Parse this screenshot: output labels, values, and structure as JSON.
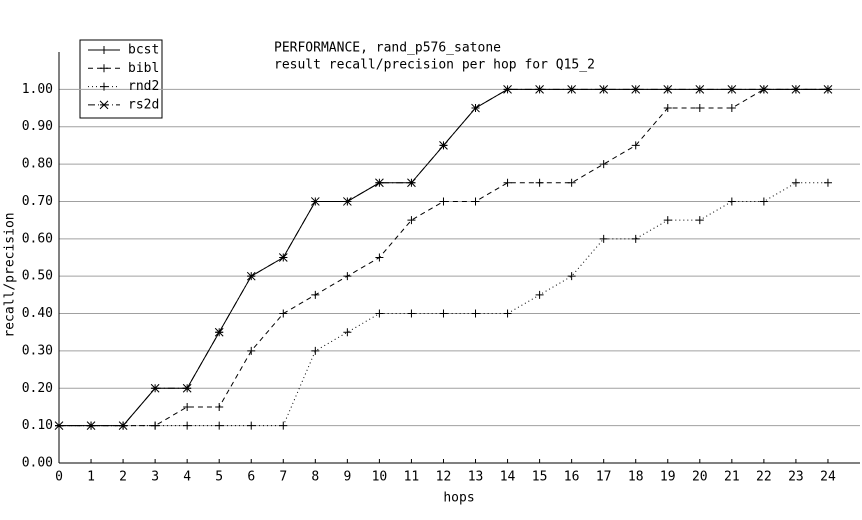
{
  "chart_data": {
    "type": "line",
    "title": "PERFORMANCE, rand_p576_satone",
    "subtitle": "result recall/precision per hop for Q15_2",
    "x_label": "hops",
    "y_label": "recall/precision",
    "x": [
      0,
      1,
      2,
      3,
      4,
      5,
      6,
      7,
      8,
      9,
      10,
      11,
      12,
      13,
      14,
      15,
      16,
      17,
      18,
      19,
      20,
      21,
      22,
      23,
      24
    ],
    "xlim": [
      0,
      25
    ],
    "xticks": [
      0,
      1,
      2,
      3,
      4,
      5,
      6,
      7,
      8,
      9,
      10,
      11,
      12,
      13,
      14,
      15,
      16,
      17,
      18,
      19,
      20,
      21,
      22,
      23,
      24
    ],
    "ylim": [
      0,
      1.1
    ],
    "yticks": [
      {
        "value": 0,
        "label": "0.00"
      },
      {
        "value": 0.1,
        "label": "0.10"
      },
      {
        "value": 0.2,
        "label": "0.20"
      },
      {
        "value": 0.3,
        "label": "0.30"
      },
      {
        "value": 0.4,
        "label": "0.40"
      },
      {
        "value": 0.5,
        "label": "0.50"
      },
      {
        "value": 0.6,
        "label": "0.60"
      },
      {
        "value": 0.7,
        "label": "0.70"
      },
      {
        "value": 0.8,
        "label": "0.80"
      },
      {
        "value": 0.9,
        "label": "0.90"
      },
      {
        "value": 1,
        "label": "1.00"
      }
    ],
    "grid": true,
    "legend": "top-left",
    "series": [
      {
        "name": "bcst",
        "color": "#000000",
        "dash": "solid",
        "marker": "plus",
        "values": [
          0.1,
          0.1,
          0.1,
          0.2,
          0.2,
          0.35,
          0.5,
          0.55,
          0.7,
          0.7,
          0.75,
          0.75,
          0.85,
          0.95,
          1,
          1,
          1,
          1,
          1,
          1,
          1,
          1,
          1,
          1,
          1
        ]
      },
      {
        "name": "bibl",
        "color": "#000000",
        "dash": "dashed",
        "marker": "plus",
        "values": [
          0.1,
          0.1,
          0.1,
          0.1,
          0.15,
          0.15,
          0.3,
          0.4,
          0.45,
          0.5,
          0.55,
          0.65,
          0.7,
          0.7,
          0.75,
          0.75,
          0.75,
          0.8,
          0.85,
          0.95,
          0.95,
          0.95,
          1,
          1,
          1
        ]
      },
      {
        "name": "rnd2",
        "color": "#000000",
        "dash": "dotted",
        "marker": "plus",
        "values": [
          0.1,
          0.1,
          0.1,
          0.1,
          0.1,
          0.1,
          0.1,
          0.1,
          0.3,
          0.35,
          0.4,
          0.4,
          0.4,
          0.4,
          0.4,
          0.45,
          0.5,
          0.6,
          0.6,
          0.65,
          0.65,
          0.7,
          0.7,
          0.75,
          0.75
        ]
      },
      {
        "name": "rs2d",
        "color": "#000000",
        "dash": "dashdot",
        "marker": "star",
        "values": [
          0.1,
          0.1,
          0.1,
          0.2,
          0.2,
          0.35,
          0.5,
          0.55,
          0.7,
          0.7,
          0.75,
          0.75,
          0.85,
          0.95,
          1,
          1,
          1,
          1,
          1,
          1,
          1,
          1,
          1,
          1,
          1
        ]
      }
    ]
  }
}
